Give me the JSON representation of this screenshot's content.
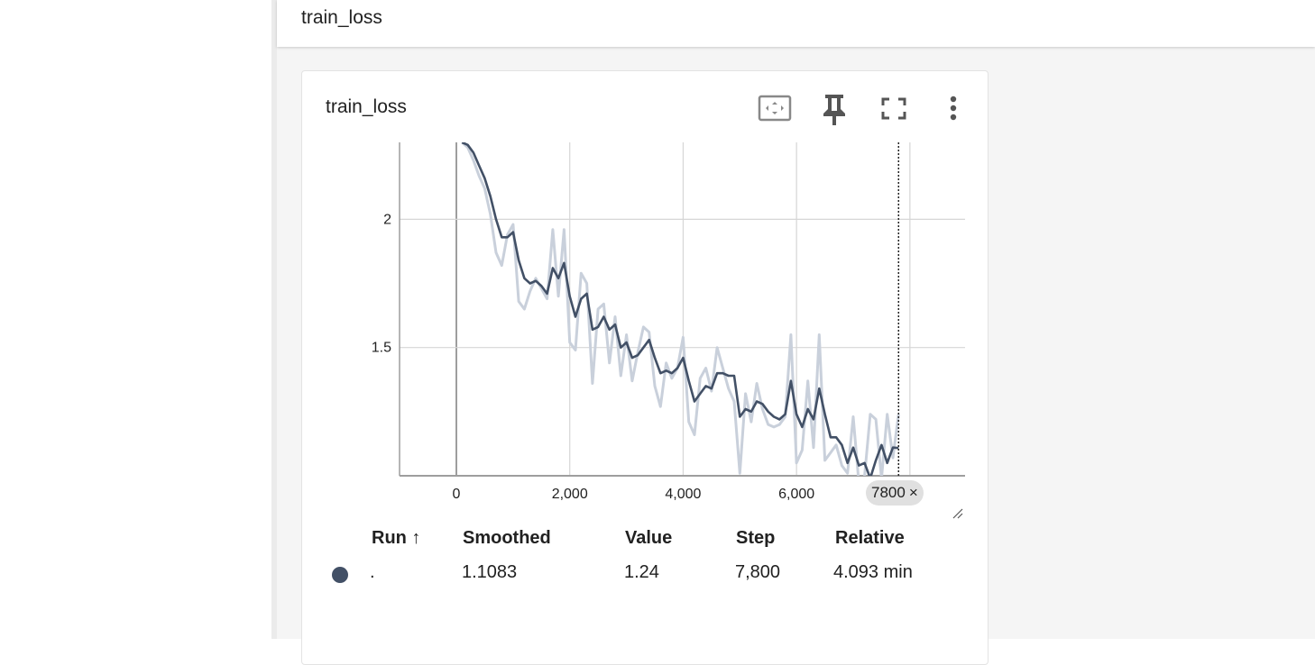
{
  "group": {
    "title": "train_loss"
  },
  "card": {
    "title": "train_loss"
  },
  "toolbar": {
    "fit_icon": "fit-to-data-icon",
    "pin_icon": "pin-icon",
    "fullscreen_icon": "fullscreen-icon",
    "more_icon": "more-vert-icon"
  },
  "step_chip": {
    "label": "7800",
    "close": "×"
  },
  "table": {
    "headers": {
      "run": "Run ↑",
      "smoothed": "Smoothed",
      "value": "Value",
      "step": "Step",
      "relative": "Relative"
    },
    "row": {
      "run": ".",
      "smoothed": "1.1083",
      "value": "1.24",
      "step": "7,800",
      "relative": "4.093 min",
      "color": "#425066"
    }
  },
  "colors": {
    "smoothed": "#425066",
    "raw": "#c9d0db",
    "grid": "#d6d6d6",
    "axis": "#9e9e9e"
  },
  "chart_data": {
    "type": "line",
    "title": "train_loss",
    "xlabel": "",
    "ylabel": "",
    "xlim": [
      -1000,
      9000
    ],
    "ylim": [
      1.0,
      2.3
    ],
    "x_ticks": [
      0,
      2000,
      4000,
      6000
    ],
    "x_tick_labels": [
      "0",
      "2,000",
      "4,000",
      "6,000"
    ],
    "y_ticks": [
      1.5,
      2.0
    ],
    "y_tick_labels": [
      "1.5",
      "2"
    ],
    "highlight_step": 7800,
    "grid": true,
    "legend": "none",
    "series": [
      {
        "role": "raw",
        "x": [
          100,
          200,
          300,
          400,
          500,
          600,
          700,
          800,
          900,
          1000,
          1100,
          1200,
          1300,
          1400,
          1500,
          1600,
          1700,
          1800,
          1900,
          2000,
          2100,
          2200,
          2300,
          2400,
          2500,
          2600,
          2700,
          2800,
          2900,
          3000,
          3100,
          3200,
          3300,
          3400,
          3500,
          3600,
          3700,
          3800,
          3900,
          4000,
          4100,
          4200,
          4300,
          4400,
          4500,
          4600,
          4700,
          4800,
          4900,
          5000,
          5100,
          5200,
          5300,
          5400,
          5500,
          5600,
          5700,
          5800,
          5900,
          6000,
          6100,
          6200,
          6300,
          6400,
          6500,
          6600,
          6700,
          6800,
          6900,
          7000,
          7100,
          7200,
          7300,
          7400,
          7500,
          7600,
          7700,
          7800
        ],
        "y": [
          2.3,
          2.28,
          2.23,
          2.17,
          2.12,
          2.02,
          1.87,
          1.82,
          1.94,
          1.98,
          1.68,
          1.65,
          1.72,
          1.77,
          1.73,
          1.69,
          1.96,
          1.7,
          1.96,
          1.52,
          1.49,
          1.79,
          1.75,
          1.36,
          1.65,
          1.67,
          1.44,
          1.62,
          1.39,
          1.55,
          1.37,
          1.48,
          1.58,
          1.56,
          1.35,
          1.27,
          1.44,
          1.38,
          1.42,
          1.54,
          1.21,
          1.16,
          1.38,
          1.42,
          1.33,
          1.5,
          1.42,
          1.34,
          1.29,
          1.01,
          1.32,
          1.21,
          1.36,
          1.26,
          1.2,
          1.19,
          1.2,
          1.23,
          1.55,
          1.05,
          1.1,
          1.37,
          1.11,
          1.55,
          1.06,
          1.09,
          1.12,
          1.04,
          1.01,
          1.23,
          0.97,
          1.0,
          1.24,
          1.22,
          0.99,
          1.24,
          1.07,
          1.24
        ]
      },
      {
        "role": "smoothed",
        "x": [
          100,
          200,
          300,
          400,
          500,
          600,
          700,
          800,
          900,
          1000,
          1100,
          1200,
          1300,
          1400,
          1500,
          1600,
          1700,
          1800,
          1900,
          2000,
          2100,
          2200,
          2300,
          2400,
          2500,
          2600,
          2700,
          2800,
          2900,
          3000,
          3100,
          3200,
          3300,
          3400,
          3500,
          3600,
          3700,
          3800,
          3900,
          4000,
          4100,
          4200,
          4300,
          4400,
          4500,
          4600,
          4700,
          4800,
          4900,
          5000,
          5100,
          5200,
          5300,
          5400,
          5500,
          5600,
          5700,
          5800,
          5900,
          6000,
          6100,
          6200,
          6300,
          6400,
          6500,
          6600,
          6700,
          6800,
          6900,
          7000,
          7100,
          7200,
          7300,
          7400,
          7500,
          7600,
          7700,
          7800
        ],
        "y": [
          2.3,
          2.29,
          2.26,
          2.21,
          2.16,
          2.09,
          2.0,
          1.93,
          1.93,
          1.95,
          1.84,
          1.77,
          1.75,
          1.76,
          1.74,
          1.71,
          1.81,
          1.77,
          1.83,
          1.7,
          1.62,
          1.69,
          1.71,
          1.57,
          1.58,
          1.62,
          1.57,
          1.59,
          1.5,
          1.52,
          1.46,
          1.47,
          1.5,
          1.53,
          1.46,
          1.4,
          1.41,
          1.4,
          1.42,
          1.46,
          1.37,
          1.29,
          1.32,
          1.35,
          1.34,
          1.4,
          1.4,
          1.39,
          1.39,
          1.23,
          1.26,
          1.25,
          1.29,
          1.28,
          1.25,
          1.23,
          1.22,
          1.24,
          1.37,
          1.24,
          1.19,
          1.26,
          1.22,
          1.34,
          1.24,
          1.15,
          1.15,
          1.12,
          1.05,
          1.11,
          1.04,
          1.05,
          0.99,
          1.06,
          1.12,
          1.05,
          1.11,
          1.1083
        ]
      }
    ]
  }
}
